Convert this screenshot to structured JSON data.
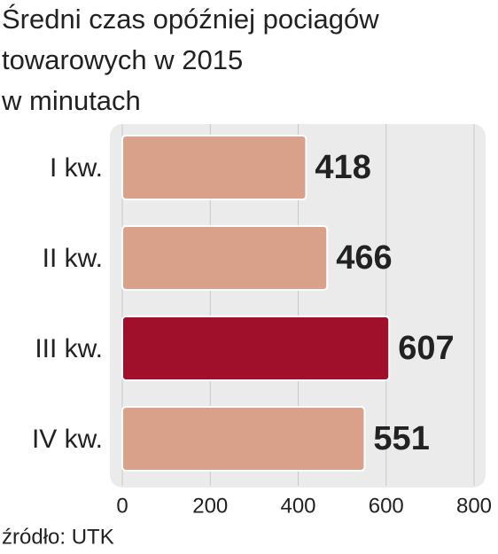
{
  "chart_data": {
    "type": "bar",
    "orientation": "horizontal",
    "title": [
      "Średni czas opóźniej pociagów",
      "towarowych w 2015",
      "w minutach"
    ],
    "categories": [
      "I kw.",
      "II kw.",
      "III kw.",
      "IV kw."
    ],
    "values": [
      418,
      466,
      607,
      551
    ],
    "colors": [
      "#d9a08a",
      "#d9a08a",
      "#a0102a",
      "#d9a08a"
    ],
    "xlim": [
      0,
      800
    ],
    "xticks": [
      0,
      200,
      400,
      600,
      800
    ],
    "grid": true,
    "source": "źródło: UTK"
  }
}
